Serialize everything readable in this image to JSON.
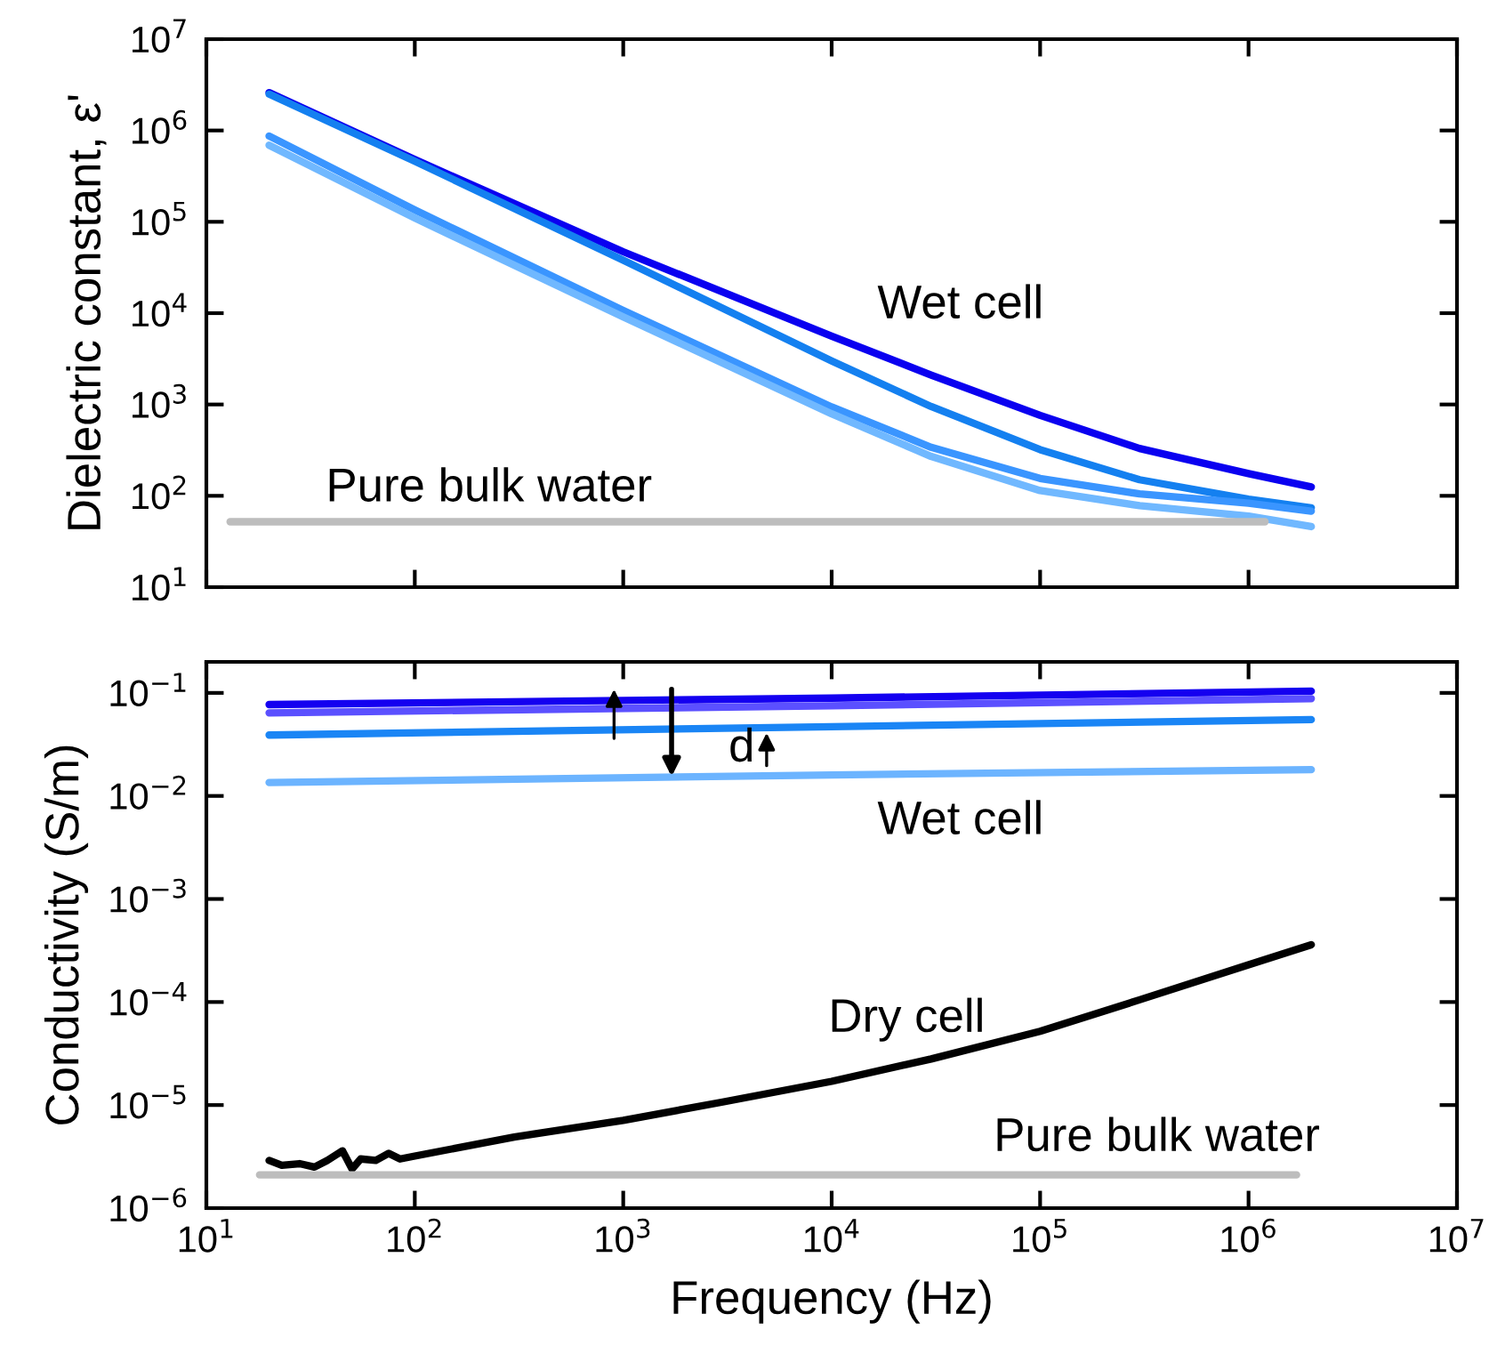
{
  "chart_data": [
    {
      "type": "line",
      "ylabel": "Dielectric constant, ε'",
      "log": "xy",
      "xlim": [
        10,
        10000000
      ],
      "ylim": [
        10,
        10000000
      ],
      "xticks": [
        {
          "value": 10,
          "label": null
        },
        {
          "value": 100,
          "label": null
        },
        {
          "value": 1000,
          "label": null
        },
        {
          "value": 10000,
          "label": null
        },
        {
          "value": 100000,
          "label": null
        },
        {
          "value": 1000000,
          "label": null
        },
        {
          "value": 10000000,
          "label": null
        }
      ],
      "yticks": [
        {
          "value": 10,
          "label": "10$^{1}$"
        },
        {
          "value": 100,
          "label": "10$^{2}$"
        },
        {
          "value": 1000,
          "label": "10$^{3}$"
        },
        {
          "value": 10000,
          "label": "10$^{4}$"
        },
        {
          "value": 100000,
          "label": "10$^{5}$"
        },
        {
          "value": 1000000,
          "label": "10$^{6}$"
        },
        {
          "value": 10000000,
          "label": "10$^{7}$"
        }
      ],
      "tick_labels": "y",
      "grid": false,
      "legend": false,
      "series": [
        {
          "color": "#0a00f0",
          "x": [
            20,
            100,
            1000,
            10000,
            30000,
            100000,
            300000,
            1000000,
            2000000
          ],
          "values": [
            2600000,
            480000,
            47000,
            5600,
            2100,
            760,
            330,
            175,
            125
          ]
        },
        {
          "color": "#1480f0",
          "x": [
            20,
            100,
            1000,
            10000,
            30000,
            100000,
            300000,
            1000000,
            2000000
          ],
          "values": [
            2500000,
            460000,
            38000,
            3000,
            950,
            320,
            150,
            92,
            74
          ]
        },
        {
          "color": "#3a95ff",
          "x": [
            20,
            100,
            1000,
            10000,
            30000,
            100000,
            300000,
            1000000,
            2000000
          ],
          "values": [
            870000,
            135000,
            10700,
            940,
            340,
            155,
            105,
            83,
            68
          ]
        },
        {
          "color": "#70b8ff",
          "x": [
            20,
            100,
            1000,
            10000,
            30000,
            100000,
            300000,
            1000000,
            2000000
          ],
          "values": [
            690000,
            110000,
            9100,
            790,
            270,
            114,
            78,
            60,
            46
          ]
        },
        {
          "color": "#bdbdbd",
          "x": [
            13,
            1200000
          ],
          "values": [
            52,
            52
          ]
        }
      ],
      "annotations": [
        "Wet cell",
        "Pure bulk water"
      ]
    },
    {
      "type": "line",
      "xlabel": "Frequency (Hz)",
      "ylabel": "Conductivity (S/m)",
      "log": "xy",
      "xlim": [
        10,
        10000000
      ],
      "ylim": [
        1e-06,
        0.2
      ],
      "xticks": [
        {
          "value": 10,
          "label": "10$^{1}$"
        },
        {
          "value": 100,
          "label": "10$^{2}$"
        },
        {
          "value": 1000,
          "label": "10$^{3}$"
        },
        {
          "value": 10000,
          "label": "10$^{4}$"
        },
        {
          "value": 100000,
          "label": "10$^{5}$"
        },
        {
          "value": 1000000,
          "label": "10$^{6}$"
        },
        {
          "value": 10000000,
          "label": "10$^{7}$"
        }
      ],
      "yticks": [
        {
          "value": 1e-06,
          "label": "10$^{−6}$"
        },
        {
          "value": 1e-05,
          "label": "10$^{−5}$"
        },
        {
          "value": 0.0001,
          "label": "10$^{−4}$"
        },
        {
          "value": 0.001,
          "label": "10$^{−3}$"
        },
        {
          "value": 0.01,
          "label": "10$^{−2}$"
        },
        {
          "value": 0.1,
          "label": "10$^{−1}$"
        }
      ],
      "grid": false,
      "legend": false,
      "series": [
        {
          "color": "#1400f0",
          "x": [
            20,
            10000,
            2000000
          ],
          "values": [
            0.077,
            0.089,
            0.104
          ]
        },
        {
          "color": "#5b50ff",
          "x": [
            20,
            10000,
            2000000
          ],
          "values": [
            0.064,
            0.075,
            0.088
          ]
        },
        {
          "color": "#1a85f5",
          "x": [
            20,
            10000,
            2000000
          ],
          "values": [
            0.039,
            0.047,
            0.055
          ]
        },
        {
          "color": "#6cb4ff",
          "x": [
            20,
            10000,
            2000000
          ],
          "values": [
            0.0135,
            0.016,
            0.018
          ]
        },
        {
          "color": "#000000",
          "x": [
            20,
            23,
            28,
            33,
            38,
            45,
            50,
            55,
            65,
            75,
            85,
            100,
            300,
            1000,
            3000,
            10000,
            30000,
            100000,
            300000,
            1000000,
            2000000
          ],
          "values": [
            2.9e-06,
            2.6e-06,
            2.7e-06,
            2.5e-06,
            2.9e-06,
            3.6e-06,
            2.4e-06,
            3e-06,
            2.9e-06,
            3.4e-06,
            3e-06,
            3.2e-06,
            4.9e-06,
            7.1e-06,
            1.07e-05,
            1.7e-05,
            2.8e-05,
            5.2e-05,
            0.000105,
            0.00023,
            0.00036
          ]
        },
        {
          "color": "#bdbdbd",
          "x": [
            18,
            1700000
          ],
          "values": [
            2.1e-06,
            2.1e-06
          ]
        }
      ],
      "annotations": [
        "Wet cell",
        "Dry cell",
        "Pure bulk water",
        "d"
      ]
    }
  ]
}
